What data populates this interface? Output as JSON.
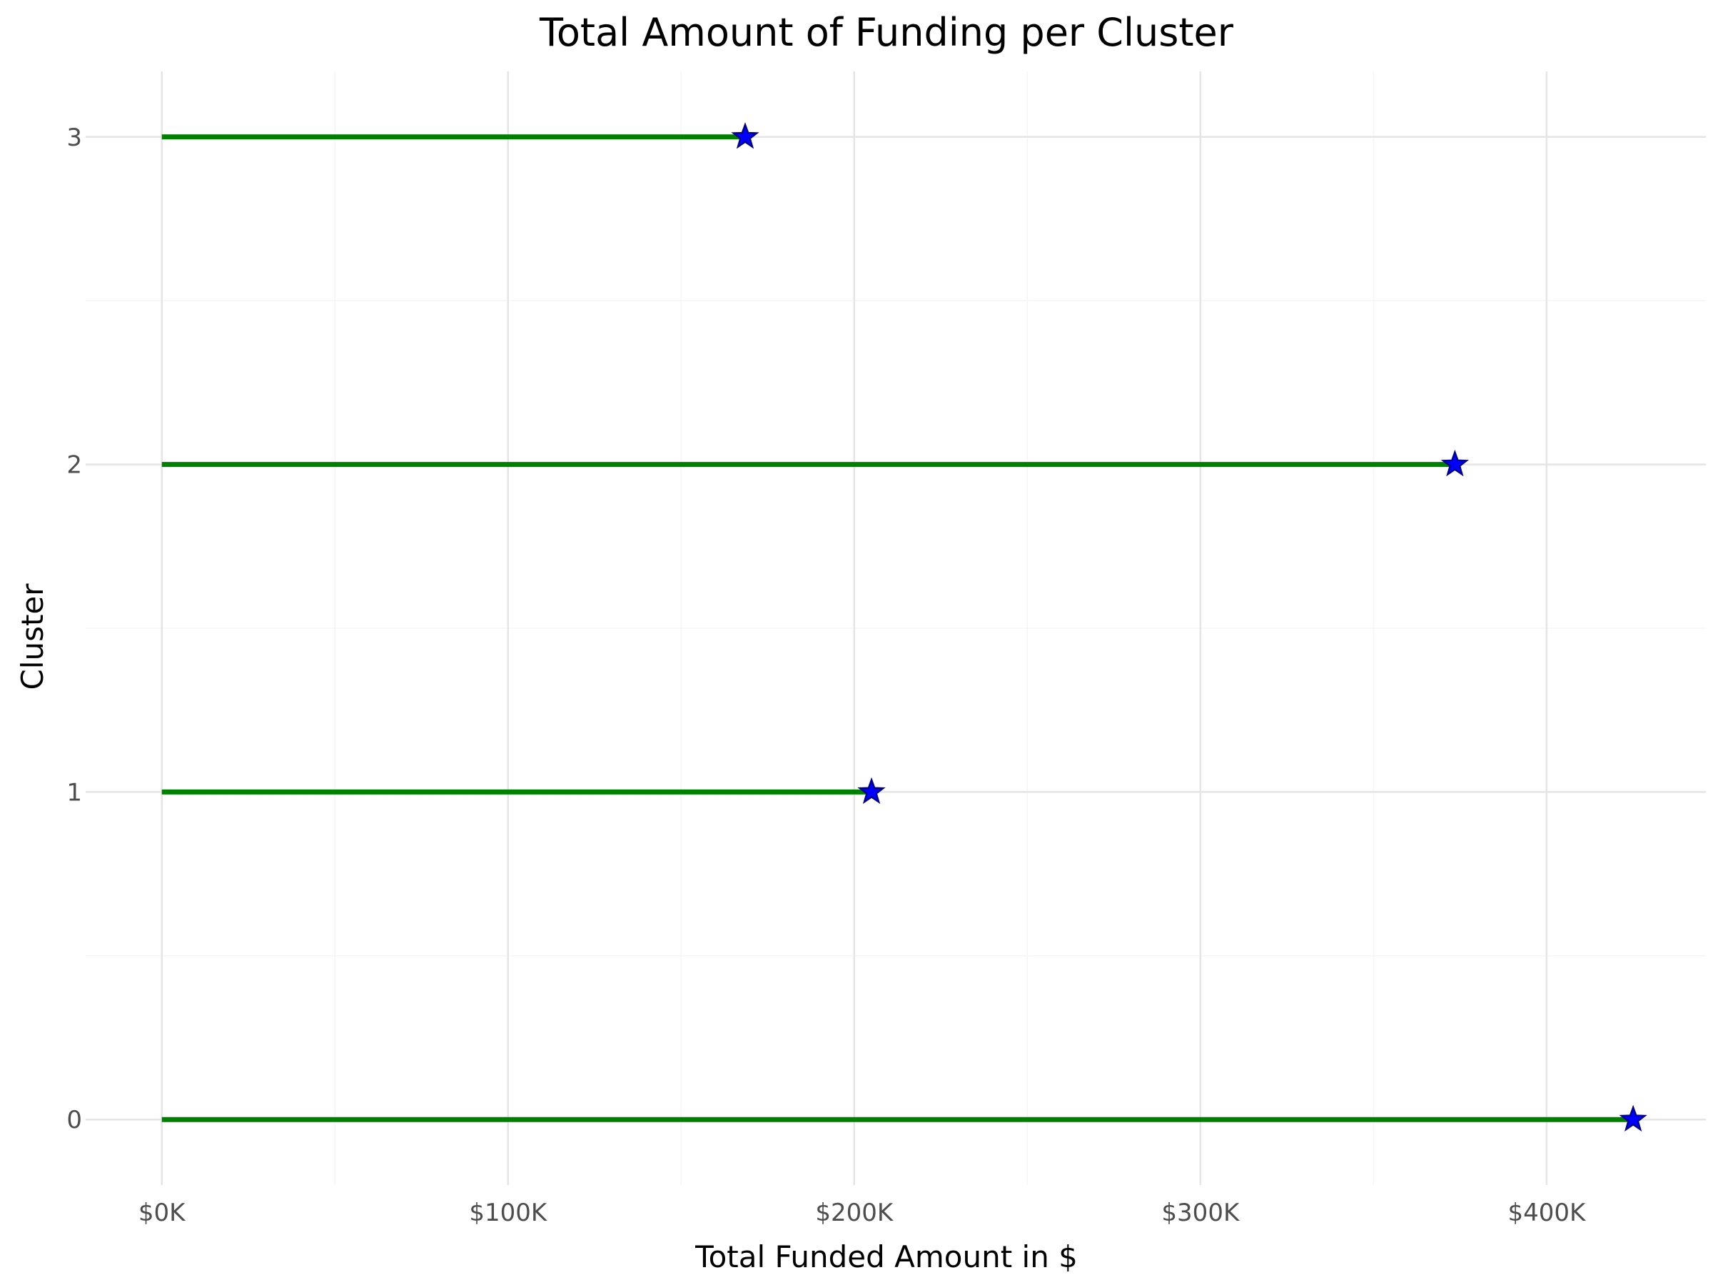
{
  "chart_data": {
    "type": "lollipop",
    "orientation": "horizontal",
    "title": "Total Amount of Funding per Cluster",
    "xlabel": "Total Funded Amount in $",
    "ylabel": "Cluster",
    "categories": [
      "0",
      "1",
      "2",
      "3"
    ],
    "values": [
      425000,
      205000,
      373500,
      168500
    ],
    "xlim": [
      -22000,
      446000
    ],
    "x_ticks": [
      0,
      100000,
      200000,
      300000,
      400000
    ],
    "x_tick_labels": [
      "$0K",
      "$100K",
      "$200K",
      "$300K",
      "$400K"
    ],
    "grid": true,
    "legend": "none",
    "colors": {
      "stem": "#008000",
      "marker": "#0000ff",
      "marker_edge": "#00008b",
      "grid_major": "#e5e5e5",
      "grid_minor": "#f5f5f5"
    },
    "marker": "star"
  }
}
